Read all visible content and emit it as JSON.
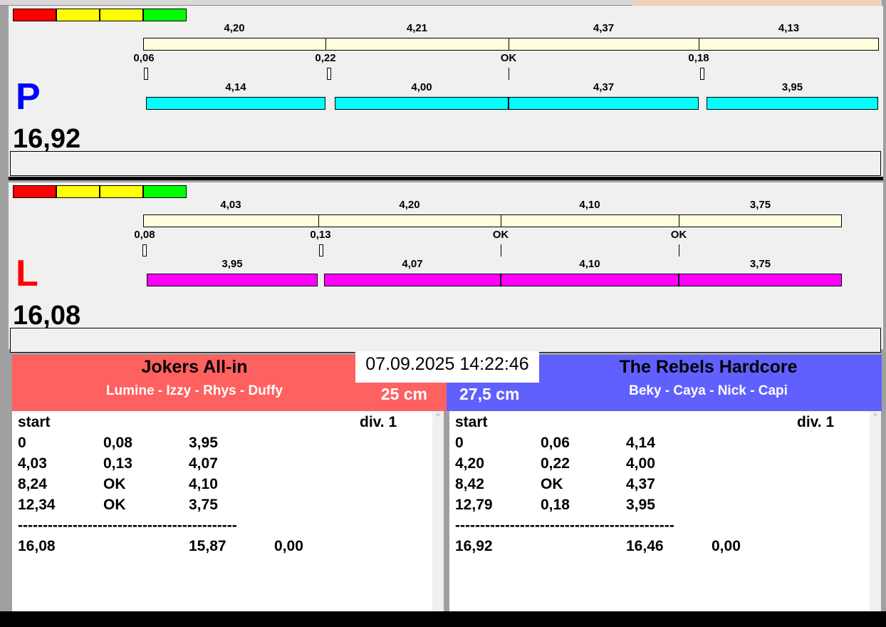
{
  "colors": {
    "red": "#ff0000",
    "yellow": "#ffff00",
    "green": "#00ff00",
    "cream": "#ffffe0",
    "cyan": "#00ffff",
    "magenta": "#ff00ff",
    "team_left": "#ff6060",
    "team_right": "#6060ff"
  },
  "panels": [
    {
      "letter": "P",
      "letter_color": "#0000ff",
      "total": "16,92",
      "bar_color": "#00ffff",
      "top_labels": [
        "4,20",
        "4,21",
        "4,37",
        "4,13"
      ],
      "gap_labels": [
        "0,06",
        "0,22",
        "OK",
        "0,18"
      ],
      "bottom_labels": [
        "4,14",
        "4,00",
        "4,37",
        "3,95"
      ]
    },
    {
      "letter": "L",
      "letter_color": "#ff0000",
      "total": "16,08",
      "bar_color": "#ff00ff",
      "top_labels": [
        "4,03",
        "4,20",
        "4,10",
        "3,75"
      ],
      "gap_labels": [
        "0,08",
        "0,13",
        "OK",
        "OK"
      ],
      "bottom_labels": [
        "3,95",
        "4,07",
        "4,10",
        "3,75"
      ]
    }
  ],
  "datetime": "07.09.2025 14:22:46",
  "teams": [
    {
      "name": "Jokers All-in",
      "players": "Lumine - Izzy - Rhys - Duffy",
      "distance": "25 cm",
      "header": "start",
      "division": "div.  1",
      "rows": [
        [
          "0",
          "0,08",
          "3,95",
          ""
        ],
        [
          "4,03",
          "0,13",
          "4,07",
          ""
        ],
        [
          "8,24",
          "OK",
          "4,10",
          ""
        ],
        [
          "12,34",
          "OK",
          "3,75",
          ""
        ]
      ],
      "separator": "--------------------------------------------",
      "totals": [
        "16,08",
        "",
        "15,87",
        "0,00"
      ]
    },
    {
      "name": "The Rebels Hardcore",
      "players": "Beky - Caya - Nick - Capi",
      "distance": "27,5 cm",
      "header": "start",
      "division": "div.  1",
      "rows": [
        [
          "0",
          "0,06",
          "4,14",
          ""
        ],
        [
          "4,20",
          "0,22",
          "4,00",
          ""
        ],
        [
          "8,42",
          "OK",
          "4,37",
          ""
        ],
        [
          "12,79",
          "0,18",
          "3,95",
          ""
        ]
      ],
      "separator": "--------------------------------------------",
      "totals": [
        "16,92",
        "",
        "16,46",
        "0,00"
      ]
    }
  ]
}
